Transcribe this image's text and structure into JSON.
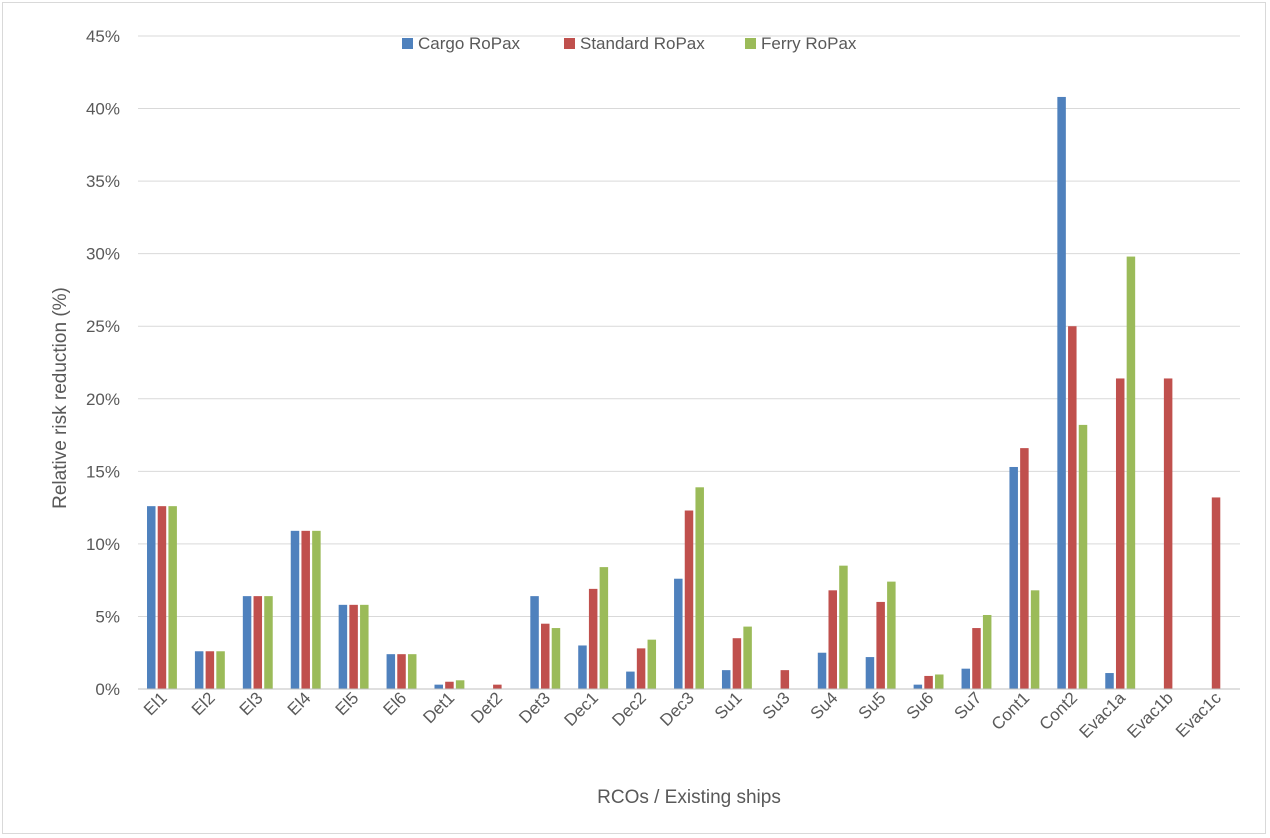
{
  "chart_data": {
    "type": "bar",
    "title": "",
    "xlabel": "RCOs / Existing ships",
    "ylabel": "Relative risk reduction (%)",
    "ylim": [
      0,
      45
    ],
    "y_ticks": [
      "0%",
      "5%",
      "10%",
      "15%",
      "20%",
      "25%",
      "30%",
      "35%",
      "40%",
      "45%"
    ],
    "grid": true,
    "legend_position": "top-center",
    "categories": [
      "El1",
      "El2",
      "El3",
      "El4",
      "El5",
      "El6",
      "Det1",
      "Det2",
      "Det3",
      "Dec1",
      "Dec2",
      "Dec3",
      "Su1",
      "Su3",
      "Su4",
      "Su5",
      "Su6",
      "Su7",
      "Cont1",
      "Cont2",
      "Evac1a",
      "Evac1b",
      "Evac1c"
    ],
    "series": [
      {
        "name": "Cargo RoPax",
        "color": "#4f81bd",
        "values": [
          12.6,
          2.6,
          6.4,
          10.9,
          5.8,
          2.4,
          0.3,
          0,
          6.4,
          3.0,
          1.2,
          7.6,
          1.3,
          0,
          2.5,
          2.2,
          0.3,
          1.4,
          15.3,
          40.8,
          1.1,
          0,
          0
        ]
      },
      {
        "name": "Standard RoPax",
        "color": "#c0504d",
        "values": [
          12.6,
          2.6,
          6.4,
          10.9,
          5.8,
          2.4,
          0.5,
          0.3,
          4.5,
          6.9,
          2.8,
          12.3,
          3.5,
          1.3,
          6.8,
          6.0,
          0.9,
          4.2,
          16.6,
          25.0,
          21.4,
          21.4,
          13.2
        ]
      },
      {
        "name": "Ferry RoPax",
        "color": "#9bbb59",
        "values": [
          12.6,
          2.6,
          6.4,
          10.9,
          5.8,
          2.4,
          0.6,
          0,
          4.2,
          8.4,
          3.4,
          13.9,
          4.3,
          0,
          8.5,
          7.4,
          1.0,
          5.1,
          6.8,
          18.2,
          29.8,
          0,
          0
        ]
      }
    ]
  }
}
